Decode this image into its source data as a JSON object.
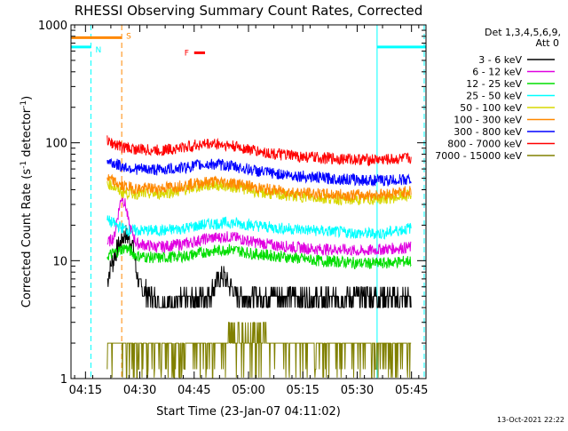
{
  "chart_data": {
    "type": "line",
    "title": "RHESSI Observing Summary Count Rates, Corrected",
    "xlabel": "Start Time (23-Jan-07 04:11:02)",
    "ylabel_parts": [
      "Corrected Count Rate (s",
      "-1",
      " detector",
      "-1",
      ")"
    ],
    "x_ticks": [
      "04:15",
      "04:30",
      "04:45",
      "05:00",
      "05:15",
      "05:30",
      "05:45"
    ],
    "x_tick_minutes": [
      4,
      19,
      34,
      49,
      64,
      79,
      94
    ],
    "y_ticks": [
      "1",
      "10",
      "100",
      "1000"
    ],
    "y_tick_values": [
      1,
      10,
      100,
      1000
    ],
    "yscale": "log",
    "ylim": [
      1,
      1000
    ],
    "xlim_minutes": [
      0,
      98
    ],
    "legend_title": [
      "Det 1,3,4,5,6,9,",
      "Att 0"
    ],
    "legend_placement": "right",
    "series": [
      {
        "name": "3 - 6 keV",
        "color": "#000000",
        "points": [
          [
            10,
            7
          ],
          [
            15,
            17
          ],
          [
            17,
            14
          ],
          [
            18,
            8
          ],
          [
            19,
            6
          ],
          [
            24,
            4.5
          ],
          [
            32,
            4.6
          ],
          [
            38,
            5
          ],
          [
            42,
            7.5
          ],
          [
            44,
            6
          ],
          [
            46,
            5
          ],
          [
            54,
            5
          ],
          [
            60,
            5
          ],
          [
            66,
            4.8
          ],
          [
            72,
            4.8
          ],
          [
            78,
            5
          ],
          [
            83,
            5
          ],
          [
            90,
            4.8
          ],
          [
            94,
            4.8
          ]
        ]
      },
      {
        "name": "6 - 12 keV",
        "color": "#e000e0",
        "points": [
          [
            10,
            14
          ],
          [
            12,
            16
          ],
          [
            13,
            25
          ],
          [
            14,
            35
          ],
          [
            15,
            30
          ],
          [
            16,
            20
          ],
          [
            18,
            14
          ],
          [
            24,
            13
          ],
          [
            32,
            14
          ],
          [
            38,
            15.5
          ],
          [
            44,
            16
          ],
          [
            50,
            14.5
          ],
          [
            56,
            13.5
          ],
          [
            62,
            13
          ],
          [
            68,
            12.5
          ],
          [
            74,
            12.5
          ],
          [
            80,
            12
          ],
          [
            86,
            12.5
          ],
          [
            94,
            13
          ]
        ]
      },
      {
        "name": "12 - 25 keV",
        "color": "#00dd00",
        "points": [
          [
            10,
            11
          ],
          [
            13,
            12
          ],
          [
            15,
            13
          ],
          [
            18,
            11
          ],
          [
            24,
            10.5
          ],
          [
            32,
            11
          ],
          [
            38,
            12
          ],
          [
            44,
            12.5
          ],
          [
            50,
            11.5
          ],
          [
            56,
            11
          ],
          [
            62,
            10.5
          ],
          [
            68,
            10
          ],
          [
            74,
            9.8
          ],
          [
            80,
            9.5
          ],
          [
            86,
            9.5
          ],
          [
            94,
            10
          ]
        ]
      },
      {
        "name": "25 - 50 keV",
        "color": "#00ffff",
        "points": [
          [
            10,
            22
          ],
          [
            14,
            19
          ],
          [
            16,
            18
          ],
          [
            20,
            18
          ],
          [
            26,
            18
          ],
          [
            32,
            19
          ],
          [
            38,
            20.5
          ],
          [
            44,
            21
          ],
          [
            50,
            20
          ],
          [
            56,
            19
          ],
          [
            62,
            18.5
          ],
          [
            68,
            18
          ],
          [
            74,
            17.5
          ],
          [
            80,
            17
          ],
          [
            86,
            17
          ],
          [
            94,
            19
          ]
        ]
      },
      {
        "name": "50 - 100 keV",
        "color": "#d8d800",
        "points": [
          [
            10,
            46
          ],
          [
            14,
            38
          ],
          [
            18,
            37
          ],
          [
            24,
            37
          ],
          [
            30,
            39
          ],
          [
            36,
            43
          ],
          [
            40,
            44
          ],
          [
            46,
            42
          ],
          [
            52,
            38
          ],
          [
            58,
            36
          ],
          [
            64,
            35
          ],
          [
            70,
            34
          ],
          [
            76,
            33
          ],
          [
            82,
            33
          ],
          [
            88,
            34
          ],
          [
            94,
            36
          ]
        ]
      },
      {
        "name": "100 - 300 keV",
        "color": "#ff8800",
        "points": [
          [
            10,
            50
          ],
          [
            14,
            43
          ],
          [
            18,
            41
          ],
          [
            24,
            41
          ],
          [
            30,
            43
          ],
          [
            36,
            46
          ],
          [
            40,
            47
          ],
          [
            46,
            45
          ],
          [
            52,
            41
          ],
          [
            58,
            39
          ],
          [
            64,
            37.5
          ],
          [
            70,
            36.5
          ],
          [
            76,
            36
          ],
          [
            82,
            36
          ],
          [
            88,
            37
          ],
          [
            94,
            39
          ]
        ]
      },
      {
        "name": "300 - 800 keV",
        "color": "#0000ff",
        "points": [
          [
            10,
            70
          ],
          [
            14,
            63
          ],
          [
            18,
            60
          ],
          [
            24,
            59
          ],
          [
            30,
            61
          ],
          [
            36,
            65
          ],
          [
            40,
            66
          ],
          [
            46,
            62
          ],
          [
            52,
            57
          ],
          [
            58,
            54
          ],
          [
            64,
            52
          ],
          [
            70,
            50
          ],
          [
            76,
            49
          ],
          [
            82,
            48
          ],
          [
            88,
            48
          ],
          [
            94,
            49
          ]
        ]
      },
      {
        "name": "800 - 7000 keV",
        "color": "#ff0000",
        "points": [
          [
            10,
            103
          ],
          [
            14,
            92
          ],
          [
            18,
            88
          ],
          [
            24,
            86
          ],
          [
            30,
            90
          ],
          [
            36,
            97
          ],
          [
            40,
            98
          ],
          [
            46,
            92
          ],
          [
            52,
            84
          ],
          [
            58,
            79
          ],
          [
            64,
            76
          ],
          [
            70,
            74
          ],
          [
            76,
            73
          ],
          [
            82,
            72
          ],
          [
            88,
            72
          ],
          [
            94,
            74
          ]
        ]
      },
      {
        "name": "7000 - 15000 keV",
        "color": "#808000",
        "points": [
          [
            10,
            2
          ],
          [
            16,
            2
          ],
          [
            22,
            2
          ],
          [
            28,
            2
          ],
          [
            32,
            2
          ],
          [
            36,
            2
          ],
          [
            40,
            2
          ],
          [
            44,
            2
          ],
          [
            48,
            2
          ],
          [
            52,
            2
          ],
          [
            56,
            2
          ],
          [
            60,
            2
          ],
          [
            66,
            2
          ],
          [
            72,
            2
          ],
          [
            78,
            2
          ],
          [
            84,
            2
          ],
          [
            90,
            2
          ],
          [
            94,
            2
          ]
        ]
      }
    ],
    "night_segments": [
      {
        "x0": 0,
        "x1": 5.5,
        "y": 650,
        "color": "#00ffff"
      },
      {
        "x0": 84.5,
        "x1": 98,
        "y": 650,
        "color": "#00ffff"
      }
    ],
    "saa_segment": {
      "x0": 0,
      "x1": 14,
      "y": 780,
      "color": "#ff8800"
    },
    "flare_segment": {
      "x0": 34,
      "x1": 37,
      "y": 580,
      "color": "#ff0000"
    },
    "vertical_lines": [
      {
        "x": 0,
        "color": "#00ffff",
        "dashed": false
      },
      {
        "x": 5.5,
        "color": "#00ffff",
        "dashed": true
      },
      {
        "x": 14,
        "color": "#ff8800",
        "dashed": true
      },
      {
        "x": 84.5,
        "color": "#00ffff",
        "dashed": false
      },
      {
        "x": 97.5,
        "color": "#00ffff",
        "dashed": true
      }
    ],
    "markers": {
      "N": "N",
      "S": "S",
      "F": "F"
    },
    "marker_colors": {
      "N": "#00ffff",
      "S": "#ff8800",
      "F": "#ff0000"
    },
    "data_start_minute": 10,
    "footer_date": "13-Oct-2021 22:22"
  }
}
